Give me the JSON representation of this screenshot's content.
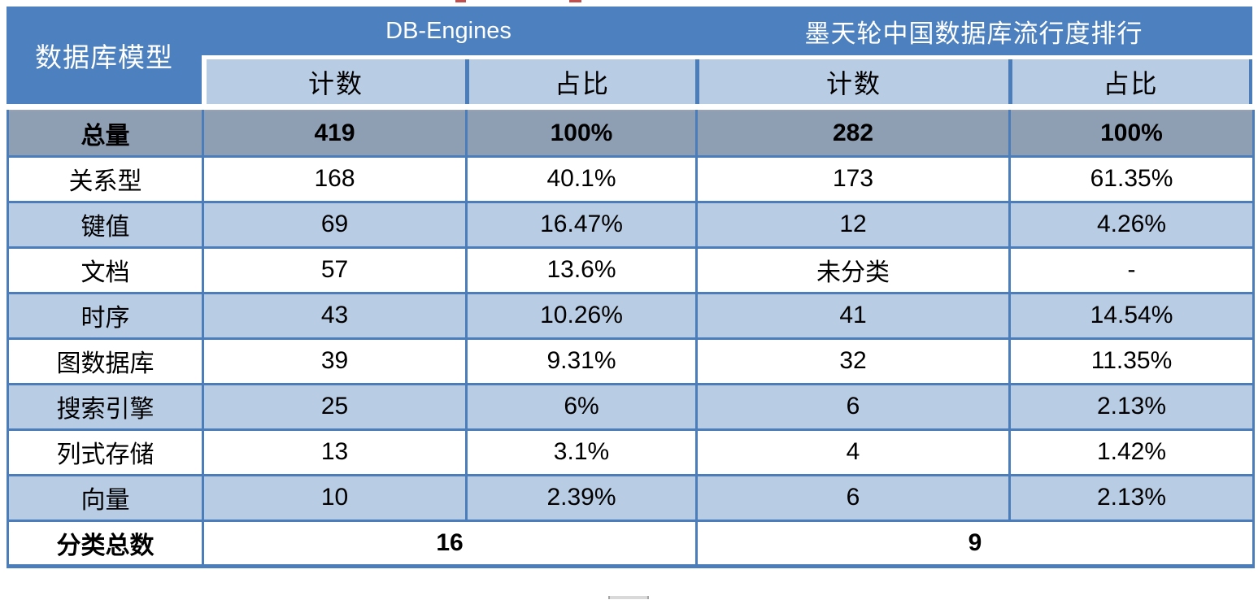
{
  "colors": {
    "header_blue": "#4D80BE",
    "subheader_blue": "#B8CCE4",
    "total_row_gray": "#8F9FB3",
    "border_blue": "#4A7DB9",
    "header_text": "#ffffff",
    "body_text": "#000000"
  },
  "table": {
    "corner_header": "数据库模型",
    "groups": [
      {
        "label": "DB-Engines",
        "sub_headers": [
          "计数",
          "占比"
        ]
      },
      {
        "label": "墨天轮中国数据库流行度排行",
        "sub_headers": [
          "计数",
          "占比"
        ]
      }
    ],
    "rows": [
      {
        "label": "总量",
        "cells": [
          "419",
          "100%",
          "282",
          "100%"
        ]
      },
      {
        "label": "关系型",
        "cells": [
          "168",
          "40.1%",
          "173",
          "61.35%"
        ]
      },
      {
        "label": "键值",
        "cells": [
          "69",
          "16.47%",
          "12",
          "4.26%"
        ]
      },
      {
        "label": "文档",
        "cells": [
          "57",
          "13.6%",
          "未分类",
          "-"
        ]
      },
      {
        "label": "时序",
        "cells": [
          "43",
          "10.26%",
          "41",
          "14.54%"
        ]
      },
      {
        "label": "图数据库",
        "cells": [
          "39",
          "9.31%",
          "32",
          "11.35%"
        ]
      },
      {
        "label": "搜索引擎",
        "cells": [
          "25",
          "6%",
          "6",
          "2.13%"
        ]
      },
      {
        "label": "列式存储",
        "cells": [
          "13",
          "3.1%",
          "4",
          "1.42%"
        ]
      },
      {
        "label": "向量",
        "cells": [
          "10",
          "2.39%",
          "6",
          "2.13%"
        ]
      }
    ],
    "footer": {
      "label": "分类总数",
      "values": [
        "16",
        "9"
      ]
    }
  },
  "chart_data": {
    "type": "table",
    "title": "数据库模型：DB-Engines 与 墨天轮中国数据库流行度排行 对比",
    "columns": [
      "数据库模型",
      "DB-Engines 计数",
      "DB-Engines 占比",
      "墨天轮中国数据库流行度排行 计数",
      "墨天轮中国数据库流行度排行 占比"
    ],
    "rows": [
      [
        "总量",
        419,
        "100%",
        282,
        "100%"
      ],
      [
        "关系型",
        168,
        "40.1%",
        173,
        "61.35%"
      ],
      [
        "键值",
        69,
        "16.47%",
        12,
        "4.26%"
      ],
      [
        "文档",
        57,
        "13.6%",
        "未分类",
        "-"
      ],
      [
        "时序",
        43,
        "10.26%",
        41,
        "14.54%"
      ],
      [
        "图数据库",
        39,
        "9.31%",
        32,
        "11.35%"
      ],
      [
        "搜索引擎",
        25,
        "6%",
        6,
        "2.13%"
      ],
      [
        "列式存储",
        13,
        "3.1%",
        4,
        "1.42%"
      ],
      [
        "向量",
        10,
        "2.39%",
        6,
        "2.13%"
      ],
      [
        "分类总数",
        16,
        "",
        9,
        ""
      ]
    ],
    "layout_hints": {
      "grouped_header": true,
      "total_row_highlighted": "gray",
      "alternating_row_colors": [
        "#ffffff",
        "#B8CCE4"
      ]
    }
  }
}
